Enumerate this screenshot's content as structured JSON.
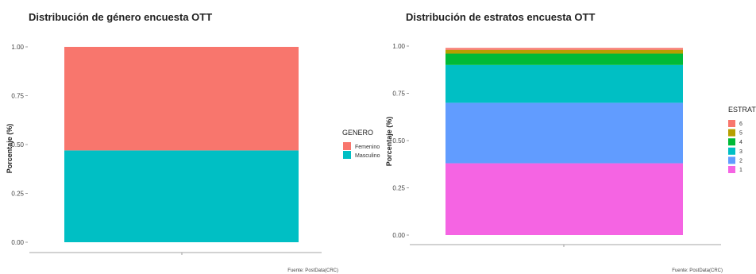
{
  "chart_data": [
    {
      "type": "bar",
      "stacked": true,
      "title": "Distribución de género encuesta OTT",
      "xlabel": "",
      "ylabel": "Porcentaje (%)",
      "ylim": [
        0,
        1
      ],
      "yticks": [
        "0.00",
        "0.25",
        "0.50",
        "0.75",
        "1.00"
      ],
      "grid": false,
      "legend_title": "GENERO",
      "legend_position": "right",
      "caption": "Fuente: PostData(CRC)",
      "series": [
        {
          "name": "Femenino",
          "value": 0.53,
          "color": "#F8766D"
        },
        {
          "name": "Masculino",
          "value": 0.47,
          "color": "#00BFC4"
        }
      ]
    },
    {
      "type": "bar",
      "stacked": true,
      "title": "Distribución de estratos encuesta OTT",
      "xlabel": "",
      "ylabel": "Porcentaje (%)",
      "ylim": [
        0,
        1
      ],
      "yticks": [
        "0.00",
        "0.25",
        "0.50",
        "0.75",
        "1.00"
      ],
      "grid": false,
      "legend_title": "ESTRATO",
      "legend_position": "right",
      "caption": "Fuente: PostData(CRC)",
      "series": [
        {
          "name": "6",
          "value": 0.01,
          "color": "#F8766D"
        },
        {
          "name": "5",
          "value": 0.02,
          "color": "#B79F00"
        },
        {
          "name": "4",
          "value": 0.06,
          "color": "#00BA38"
        },
        {
          "name": "3",
          "value": 0.2,
          "color": "#00BFC4"
        },
        {
          "name": "2",
          "value": 0.32,
          "color": "#619CFF"
        },
        {
          "name": "1",
          "value": 0.38,
          "color": "#F564E3"
        }
      ]
    }
  ]
}
